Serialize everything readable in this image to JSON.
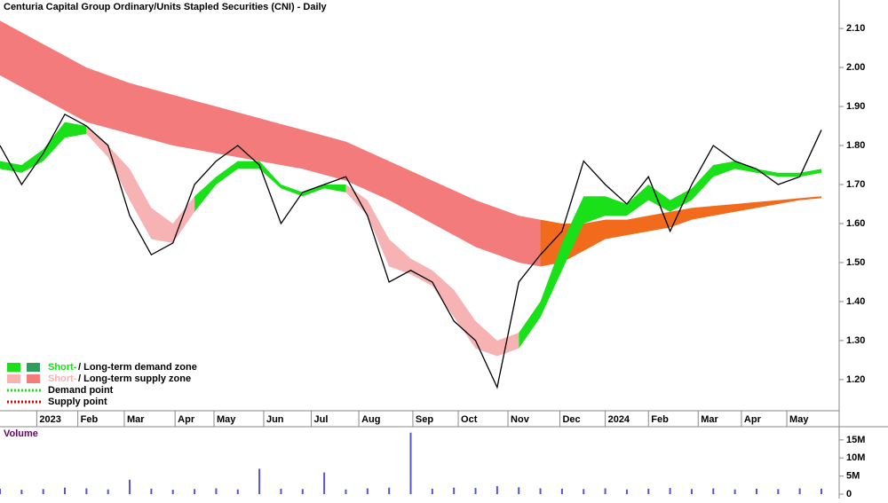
{
  "chart_data": {
    "type": "line",
    "title": "Centuria Capital Group Ordinary/Units Stapled Securities (CNI) - Daily",
    "xlim": [
      0,
      38
    ],
    "xticks": [
      {
        "value": 1.7,
        "label": "2023"
      },
      {
        "value": 3.6,
        "label": "Feb"
      },
      {
        "value": 5.75,
        "label": "Mar"
      },
      {
        "value": 8.1,
        "label": "Apr"
      },
      {
        "value": 9.9,
        "label": "May"
      },
      {
        "value": 12.2,
        "label": "Jun"
      },
      {
        "value": 14.4,
        "label": "Jul"
      },
      {
        "value": 16.6,
        "label": "Aug"
      },
      {
        "value": 19.1,
        "label": "Sep"
      },
      {
        "value": 21.2,
        "label": "Oct"
      },
      {
        "value": 23.5,
        "label": "Nov"
      },
      {
        "value": 25.9,
        "label": "Dec"
      },
      {
        "value": 28.0,
        "label": "2024"
      },
      {
        "value": 30.0,
        "label": "Feb"
      },
      {
        "value": 32.3,
        "label": "Mar"
      },
      {
        "value": 34.3,
        "label": "Apr"
      },
      {
        "value": 36.4,
        "label": "May"
      }
    ],
    "ylim": [
      1.086,
      2.173
    ],
    "yticks": [
      {
        "value": 1.2,
        "label": "1.20"
      },
      {
        "value": 1.3,
        "label": "1.30"
      },
      {
        "value": 1.4,
        "label": "1.40"
      },
      {
        "value": 1.5,
        "label": "1.50"
      },
      {
        "value": 1.6,
        "label": "1.60"
      },
      {
        "value": 1.7,
        "label": "1.70"
      },
      {
        "value": 1.8,
        "label": "1.80"
      },
      {
        "value": 1.9,
        "label": "1.90"
      },
      {
        "value": 2.0,
        "label": "2.00"
      },
      {
        "value": 2.1,
        "label": "2.10"
      }
    ],
    "series": [
      {
        "color": "#000000",
        "values": [
          1.8,
          1.7,
          1.78,
          1.88,
          1.85,
          1.8,
          1.62,
          1.52,
          1.55,
          1.7,
          1.76,
          1.8,
          1.75,
          1.6,
          1.68,
          1.7,
          1.72,
          1.62,
          1.45,
          1.48,
          1.45,
          1.35,
          1.3,
          1.18,
          1.45,
          1.52,
          1.58,
          1.76,
          1.7,
          1.65,
          1.72,
          1.58,
          1.7,
          1.8,
          1.76,
          1.74,
          1.7,
          1.72,
          1.84
        ]
      }
    ],
    "bands": [
      {
        "color": "#f47b7b",
        "upper": [
          2.12,
          2.09,
          2.06,
          2.03,
          2.0,
          1.98,
          1.96,
          1.945,
          1.93,
          1.915,
          1.9,
          1.885,
          1.87,
          1.855,
          1.84,
          1.825,
          1.81,
          1.785,
          1.76,
          1.735,
          1.71,
          1.685,
          1.66,
          1.64,
          1.62,
          1.61,
          null,
          null,
          null,
          null,
          null,
          null,
          null,
          null,
          null,
          null,
          null,
          null,
          null
        ],
        "lower": [
          1.98,
          1.95,
          1.92,
          1.89,
          1.86,
          1.845,
          1.83,
          1.815,
          1.8,
          1.79,
          1.78,
          1.77,
          1.76,
          1.75,
          1.74,
          1.725,
          1.71,
          1.685,
          1.66,
          1.63,
          1.6,
          1.57,
          1.54,
          1.52,
          1.5,
          1.49,
          null,
          null,
          null,
          null,
          null,
          null,
          null,
          null,
          null,
          null,
          null,
          null,
          null
        ]
      },
      {
        "color": "#f26b1d",
        "upper": [
          null,
          null,
          null,
          null,
          null,
          null,
          null,
          null,
          null,
          null,
          null,
          null,
          null,
          null,
          null,
          null,
          null,
          null,
          null,
          null,
          null,
          null,
          null,
          null,
          null,
          1.61,
          1.6,
          1.6,
          1.61,
          1.61,
          1.62,
          1.63,
          1.64,
          1.645,
          1.65,
          1.655,
          1.66,
          1.665,
          1.67
        ],
        "lower": [
          null,
          null,
          null,
          null,
          null,
          null,
          null,
          null,
          null,
          null,
          null,
          null,
          null,
          null,
          null,
          null,
          null,
          null,
          null,
          null,
          null,
          null,
          null,
          null,
          null,
          1.49,
          1.5,
          1.53,
          1.56,
          1.57,
          1.58,
          1.59,
          1.61,
          1.62,
          1.63,
          1.64,
          1.65,
          1.66,
          1.665
        ]
      },
      {
        "color": "#19e019",
        "upper": [
          1.76,
          1.75,
          1.79,
          1.86,
          1.85,
          null,
          null,
          null,
          null,
          1.67,
          1.72,
          1.76,
          1.76,
          1.7,
          1.68,
          1.7,
          1.7,
          null,
          null,
          null,
          null,
          null,
          null,
          null,
          1.32,
          1.4,
          1.55,
          1.67,
          1.67,
          1.65,
          1.7,
          1.66,
          1.69,
          1.75,
          1.76,
          1.74,
          1.73,
          1.73,
          1.74
        ],
        "lower": [
          1.74,
          1.73,
          1.76,
          1.82,
          1.83,
          null,
          null,
          null,
          null,
          1.63,
          1.7,
          1.74,
          1.74,
          1.69,
          1.67,
          1.69,
          1.68,
          null,
          null,
          null,
          null,
          null,
          null,
          null,
          1.28,
          1.36,
          1.48,
          1.6,
          1.62,
          1.62,
          1.66,
          1.63,
          1.66,
          1.72,
          1.74,
          1.73,
          1.72,
          1.72,
          1.73
        ]
      },
      {
        "color": "#f7b3b3",
        "upper": [
          null,
          null,
          null,
          null,
          1.85,
          1.8,
          1.74,
          1.64,
          1.6,
          1.67,
          null,
          null,
          null,
          null,
          null,
          null,
          1.7,
          1.66,
          1.56,
          1.51,
          1.48,
          1.43,
          1.35,
          1.3,
          1.32,
          null,
          null,
          null,
          null,
          null,
          null,
          null,
          null,
          null,
          null,
          null,
          null,
          null,
          null
        ],
        "lower": [
          null,
          null,
          null,
          null,
          1.83,
          1.77,
          1.66,
          1.56,
          1.55,
          1.63,
          null,
          null,
          null,
          null,
          null,
          null,
          1.68,
          1.62,
          1.49,
          1.47,
          1.44,
          1.36,
          1.28,
          1.26,
          1.28,
          null,
          null,
          null,
          null,
          null,
          null,
          null,
          null,
          null,
          null,
          null,
          null,
          null,
          null
        ]
      }
    ],
    "volume": {
      "title": "Volume",
      "color": "#5555cc",
      "ylim": [
        0,
        18.4
      ],
      "yticks": [
        0,
        {
          "value": 5,
          "label": "5M"
        },
        {
          "value": 10,
          "label": "10M"
        },
        {
          "value": 15,
          "label": "15M"
        }
      ],
      "values": [
        1.5,
        1.2,
        1.4,
        1.8,
        1.6,
        1.3,
        4.0,
        1.5,
        1.2,
        1.4,
        1.6,
        1.3,
        7.0,
        1.5,
        1.4,
        6.0,
        1.3,
        1.6,
        1.8,
        17.0,
        1.5,
        1.8,
        1.7,
        2.2,
        1.9,
        1.6,
        1.5,
        1.4,
        1.6,
        1.3,
        1.5,
        1.7,
        1.4,
        1.6,
        1.3,
        1.5,
        1.4,
        1.6,
        1.5
      ]
    },
    "legend": [
      {
        "short": "Short-",
        "long": "/ Long-term demand zone",
        "colors": [
          "#19e019",
          "#2e9e5e"
        ]
      },
      {
        "short": "Short-",
        "long": "/ Long-term supply zone",
        "colors": [
          "#f7b3b3",
          "#f47b7b"
        ]
      },
      {
        "label": "Demand point",
        "color": "#19e019"
      },
      {
        "label": "Supply point",
        "color": "#dd0000"
      }
    ]
  }
}
